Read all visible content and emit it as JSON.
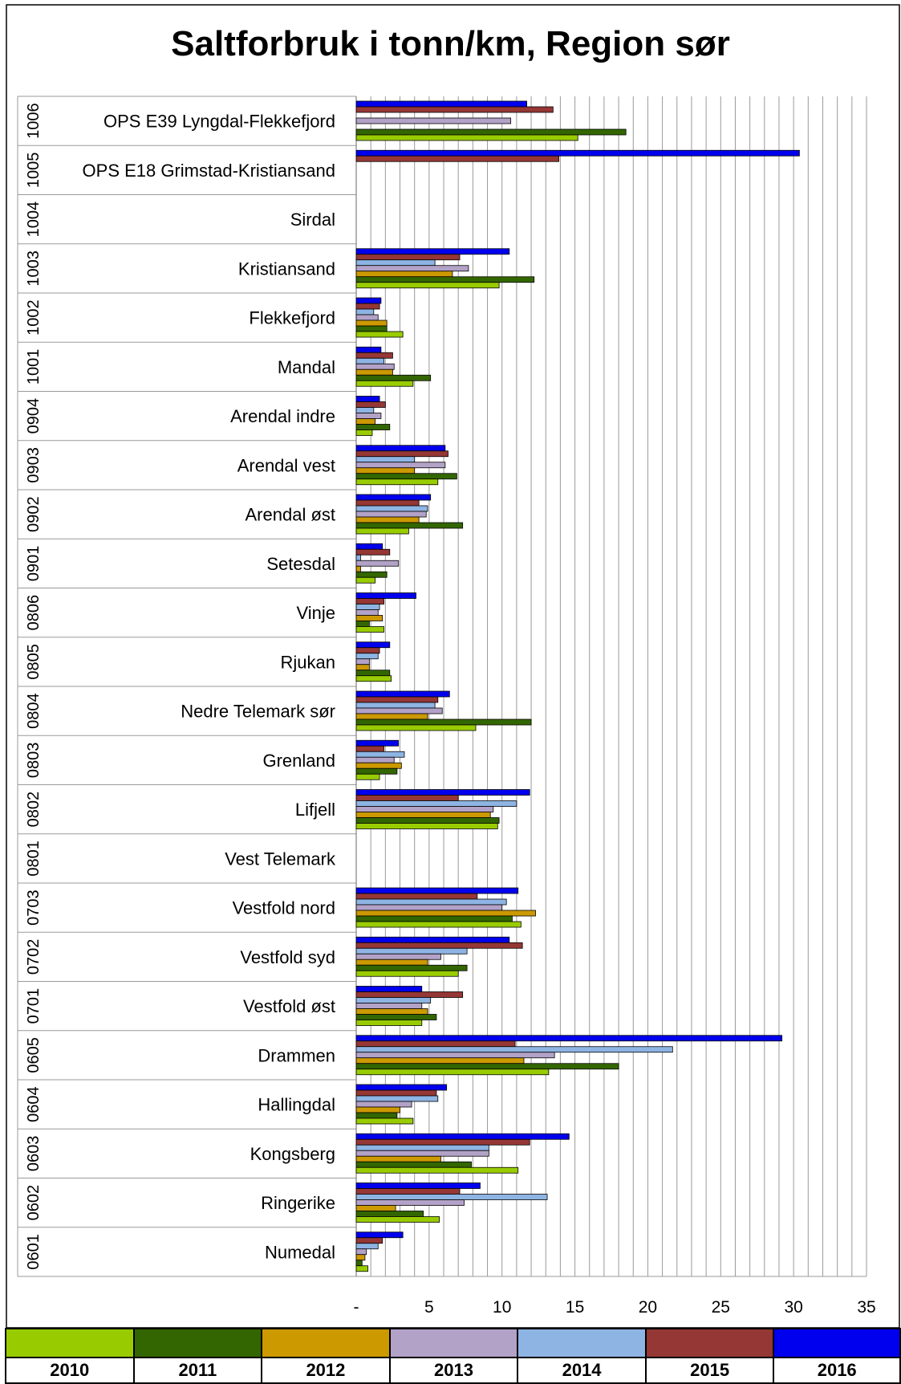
{
  "chart_data": {
    "type": "bar",
    "orientation": "horizontal",
    "title": "Saltforbruk i tonn/km, Region sør",
    "xlabel": "",
    "ylabel": "",
    "xlim": [
      0,
      35
    ],
    "x_ticks": [
      "-",
      "5",
      "10",
      "15",
      "20",
      "25",
      "30",
      "35"
    ],
    "grid": "vertical",
    "legend_position": "bottom",
    "categories": [
      {
        "code": "1006",
        "name": "OPS E39 Lyngdal-Flekkefjord"
      },
      {
        "code": "1005",
        "name": "OPS E18 Grimstad-Kristiansand"
      },
      {
        "code": "1004",
        "name": "Sirdal"
      },
      {
        "code": "1003",
        "name": "Kristiansand"
      },
      {
        "code": "1002",
        "name": "Flekkefjord"
      },
      {
        "code": "1001",
        "name": "Mandal"
      },
      {
        "code": "0904",
        "name": "Arendal indre"
      },
      {
        "code": "0903",
        "name": "Arendal vest"
      },
      {
        "code": "0902",
        "name": "Arendal øst"
      },
      {
        "code": "0901",
        "name": "Setesdal"
      },
      {
        "code": "0806",
        "name": "Vinje"
      },
      {
        "code": "0805",
        "name": "Rjukan"
      },
      {
        "code": "0804",
        "name": "Nedre Telemark sør"
      },
      {
        "code": "0803",
        "name": "Grenland"
      },
      {
        "code": "0802",
        "name": "Lifjell"
      },
      {
        "code": "0801",
        "name": "Vest Telemark"
      },
      {
        "code": "0703",
        "name": "Vestfold nord"
      },
      {
        "code": "0702",
        "name": "Vestfold syd"
      },
      {
        "code": "0701",
        "name": "Vestfold øst"
      },
      {
        "code": "0605",
        "name": "Drammen"
      },
      {
        "code": "0604",
        "name": "Hallingdal"
      },
      {
        "code": "0603",
        "name": "Kongsberg"
      },
      {
        "code": "0602",
        "name": "Ringerike"
      },
      {
        "code": "0601",
        "name": "Numedal"
      }
    ],
    "series": [
      {
        "name": "2016",
        "color": "#0000ee",
        "values": [
          11.7,
          30.4,
          0,
          10.5,
          1.7,
          1.7,
          1.6,
          6.1,
          5.1,
          1.8,
          4.1,
          2.3,
          6.4,
          2.9,
          11.9,
          0,
          11.1,
          10.5,
          4.5,
          29.2,
          6.2,
          14.6,
          8.5,
          3.2
        ]
      },
      {
        "name": "2015",
        "color": "#953735",
        "values": [
          13.5,
          13.9,
          0,
          7.1,
          1.6,
          2.5,
          2.0,
          6.3,
          4.3,
          2.3,
          1.9,
          1.6,
          5.6,
          1.9,
          7.0,
          0,
          8.3,
          11.4,
          7.3,
          10.9,
          5.5,
          11.9,
          7.1,
          1.8
        ]
      },
      {
        "name": "2014",
        "color": "#8eb4e3",
        "values": [
          0,
          0,
          0,
          5.4,
          1.2,
          1.9,
          1.2,
          4.0,
          4.9,
          0.3,
          1.6,
          1.5,
          5.4,
          3.3,
          11.0,
          0,
          10.3,
          7.6,
          5.1,
          21.7,
          5.6,
          9.1,
          13.1,
          1.5
        ]
      },
      {
        "name": "2013",
        "color": "#b3a2c7",
        "values": [
          10.6,
          0,
          0,
          7.7,
          1.5,
          2.6,
          1.7,
          6.1,
          4.8,
          2.9,
          1.5,
          0.9,
          5.9,
          2.6,
          9.4,
          0,
          10.0,
          5.8,
          4.5,
          13.6,
          3.8,
          9.1,
          7.4,
          0.7
        ]
      },
      {
        "name": "2012",
        "color": "#cc9900",
        "values": [
          0,
          0,
          0,
          6.6,
          2.1,
          2.5,
          1.3,
          4.0,
          4.3,
          0.3,
          1.8,
          0.9,
          4.9,
          3.1,
          9.2,
          0,
          12.3,
          4.9,
          4.9,
          11.5,
          3.0,
          5.8,
          2.7,
          0.6
        ]
      },
      {
        "name": "2011",
        "color": "#336600",
        "values": [
          18.5,
          0,
          0,
          12.2,
          2.1,
          5.1,
          2.3,
          6.9,
          7.3,
          2.1,
          0.9,
          2.3,
          12.0,
          2.8,
          9.8,
          0,
          10.7,
          7.6,
          5.5,
          18.0,
          2.8,
          7.9,
          4.6,
          0.4
        ]
      },
      {
        "name": "2010",
        "color": "#99cc00",
        "values": [
          15.2,
          0,
          0,
          9.8,
          3.2,
          3.9,
          1.1,
          5.6,
          3.6,
          1.3,
          1.9,
          2.4,
          8.2,
          1.6,
          9.7,
          0,
          11.3,
          7.0,
          4.5,
          13.2,
          3.9,
          11.1,
          5.7,
          0.8
        ]
      }
    ]
  },
  "legend": {
    "items": [
      {
        "label": "2010",
        "color": "#99cc00"
      },
      {
        "label": "2011",
        "color": "#336600"
      },
      {
        "label": "2012",
        "color": "#cc9900"
      },
      {
        "label": "2013",
        "color": "#b3a2c7"
      },
      {
        "label": "2014",
        "color": "#8eb4e3"
      },
      {
        "label": "2015",
        "color": "#953735"
      },
      {
        "label": "2016",
        "color": "#0000ee"
      }
    ]
  }
}
